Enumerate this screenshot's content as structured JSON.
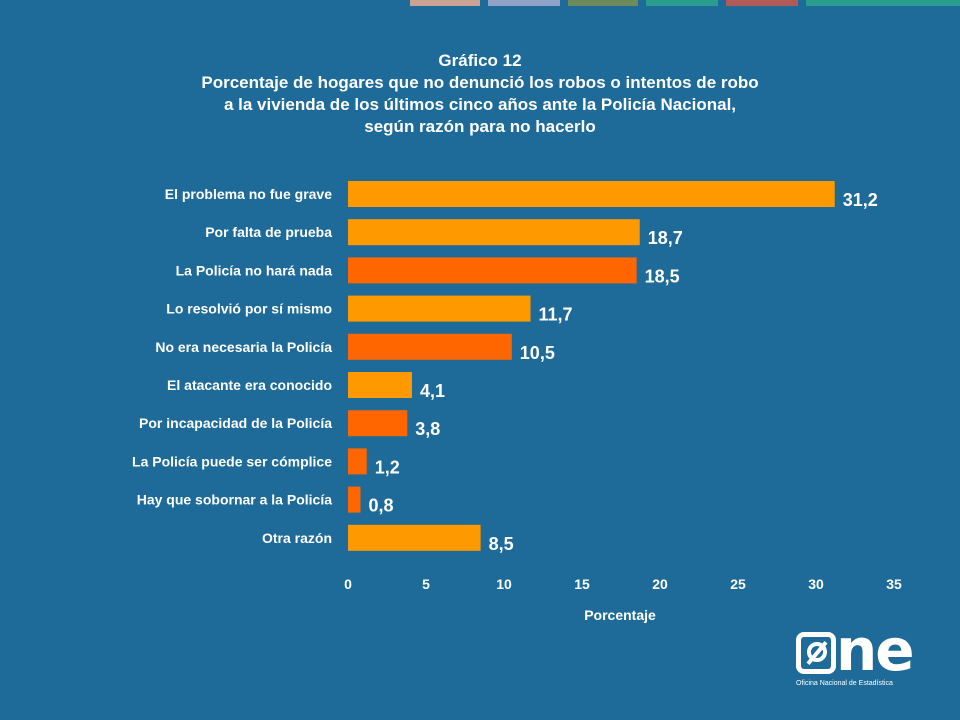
{
  "header": {
    "title_line1": "Gráfico 12",
    "title_line2": "Porcentaje de hogares que no denunció los robos o intentos de robo",
    "title_line3": "a la vivienda de los últimos cinco años ante la Policía Nacional,",
    "title_line4": "según razón para no hacerlo"
  },
  "colors": {
    "background": "#1e6b99",
    "bar_light": "#ff9900",
    "bar_dark": "#ff6600",
    "strip": [
      "#c9a293",
      "#8fa3c8",
      "#6e8b5c",
      "#2a9d8f",
      "#b05a5a"
    ]
  },
  "chart_data": {
    "type": "bar",
    "orientation": "horizontal",
    "categories": [
      "El problema no fue grave",
      "Por falta de prueba",
      "La Policía no hará nada",
      "Lo resolvió por sí mismo",
      "No era necesaria la Policía",
      "El atacante era conocido",
      "Por incapacidad de la Policía",
      "La Policía puede ser cómplice",
      "Hay que sobornar a la Policía",
      "Otra razón"
    ],
    "values": [
      31.2,
      18.7,
      18.5,
      11.7,
      10.5,
      4.1,
      3.8,
      1.2,
      0.8,
      8.5
    ],
    "value_labels": [
      "31,2",
      "18,7",
      "18,5",
      "11,7",
      "10,5",
      "4,1",
      "3,8",
      "1,2",
      "0,8",
      "8,5"
    ],
    "bar_colors": [
      "#ff9900",
      "#ff9900",
      "#ff6600",
      "#ff9900",
      "#ff6600",
      "#ff9900",
      "#ff6600",
      "#ff6600",
      "#ff6600",
      "#ff9900"
    ],
    "xlabel": "Porcentaje",
    "xlim": [
      0,
      35
    ],
    "xticks": [
      "0",
      "5",
      "10",
      "15",
      "20",
      "25",
      "30",
      "35"
    ],
    "grid": false
  },
  "logo": {
    "text": "ne",
    "subtitle": "Oficina Nacional de Estadística"
  }
}
